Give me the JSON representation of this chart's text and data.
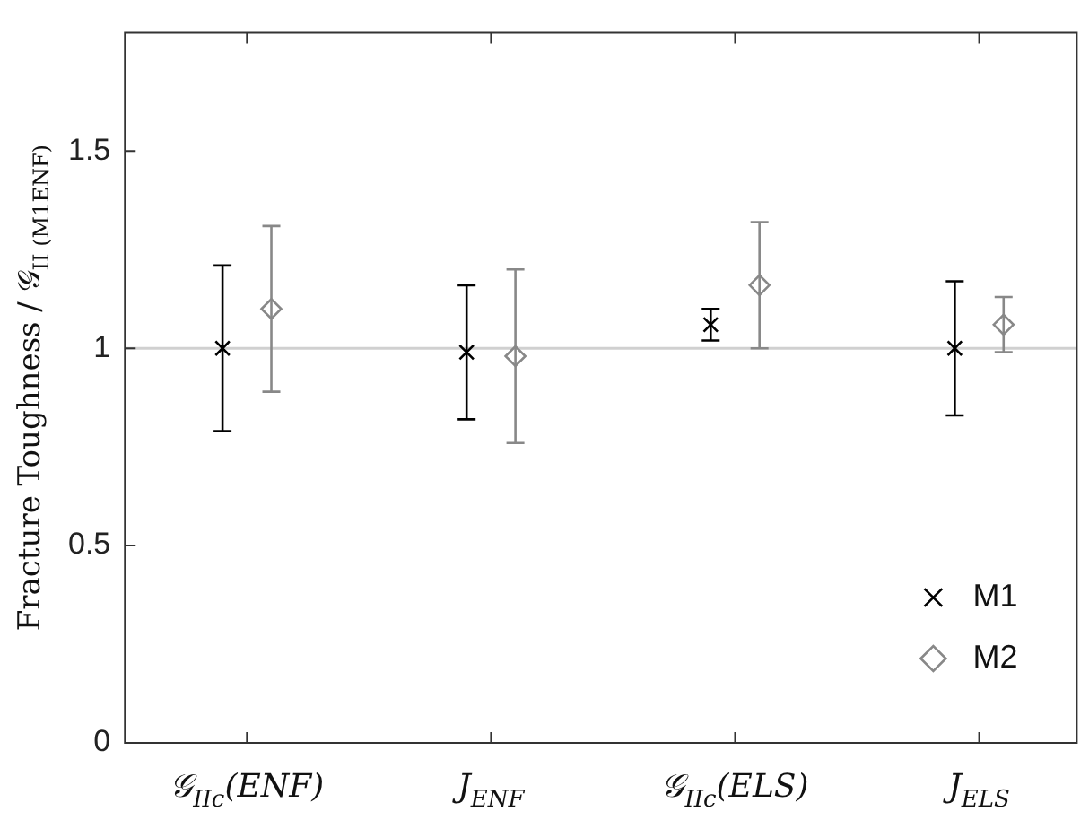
{
  "chart_data": {
    "type": "scatter",
    "ylabel": "Fracture Toughness / 𝒢$_{II (M1ENF)}$",
    "categories": [
      "𝒢$_{IIc}$(ENF)",
      "J$_{ENF}$",
      "𝒢$_{IIc}$(ELS)",
      "J$_{ELS}$"
    ],
    "series": [
      {
        "name": "M1",
        "color": "#000000",
        "marker": "cross",
        "values": [
          1.0,
          0.99,
          1.06,
          1.0
        ],
        "errors": [
          [
            0.79,
            1.21
          ],
          [
            0.82,
            1.16
          ],
          [
            1.02,
            1.1
          ],
          [
            0.83,
            1.17
          ]
        ]
      },
      {
        "name": "M2",
        "color": "#888888",
        "marker": "diamond",
        "values": [
          1.1,
          0.98,
          1.16,
          1.06
        ],
        "errors": [
          [
            0.89,
            1.31
          ],
          [
            0.76,
            1.2
          ],
          [
            1.0,
            1.32
          ],
          [
            0.99,
            1.13
          ]
        ]
      }
    ],
    "ylim": [
      0,
      1.8
    ],
    "yticks": [
      0,
      0.5,
      1,
      1.5
    ],
    "ref_lines": [
      {
        "axis": "y",
        "value": 1,
        "color": "#d0d0d0"
      }
    ],
    "legend": "bottom right",
    "grid": false
  }
}
